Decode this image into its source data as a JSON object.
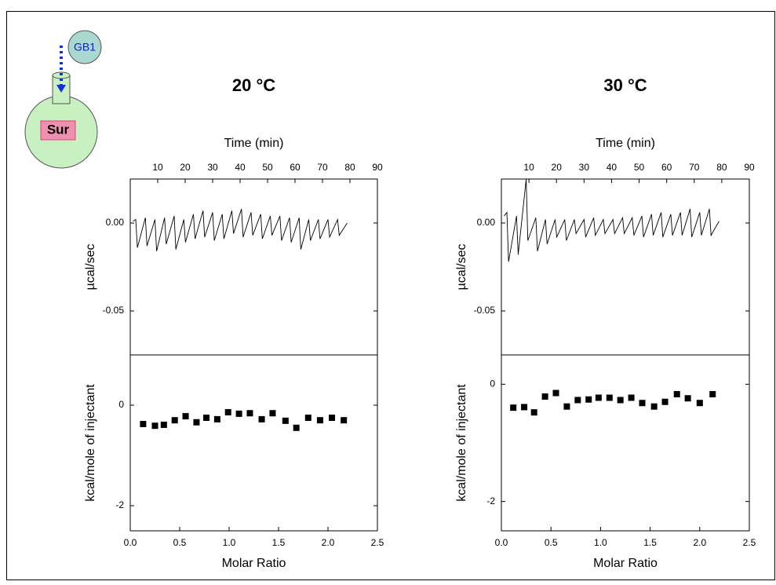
{
  "inset": {
    "titrant": "GB1",
    "cell": "Sur"
  },
  "chart_data": [
    {
      "type": "line",
      "title": "20 °C",
      "x_label": "Time (min)",
      "y_label": "µcal/sec",
      "color": "#000000",
      "xlim": [
        0,
        90
      ],
      "xticks": [
        10,
        20,
        30,
        40,
        50,
        60,
        70,
        80,
        90
      ],
      "ylim": [
        -0.075,
        0.025
      ],
      "yticks": [
        {
          "value": 0,
          "label": "0.00"
        },
        {
          "value": -0.05,
          "label": "-0.05"
        }
      ],
      "x": [
        1,
        2,
        2.6,
        5.5,
        6.1,
        9,
        9.6,
        12.5,
        13.1,
        16,
        16.6,
        19.5,
        20.1,
        23,
        23.6,
        26.5,
        27.1,
        30,
        30.6,
        33.5,
        34.1,
        37,
        37.6,
        40.5,
        41.1,
        44,
        44.6,
        47.5,
        48.1,
        51,
        51.6,
        54.5,
        55.1,
        58,
        58.6,
        61.5,
        62.1,
        65,
        65.6,
        68.5,
        69.1,
        72,
        72.6,
        75.5,
        76.1,
        79
      ],
      "values": [
        0.001,
        0.002,
        -0.014,
        0.003,
        -0.013,
        0.002,
        -0.016,
        0.003,
        -0.012,
        0.004,
        -0.015,
        0.002,
        -0.011,
        0.005,
        -0.009,
        0.007,
        -0.008,
        0.006,
        -0.01,
        0.005,
        -0.009,
        0.007,
        -0.006,
        0.008,
        -0.008,
        0.006,
        -0.007,
        0.005,
        -0.009,
        0.004,
        -0.007,
        0.004,
        -0.01,
        0.003,
        -0.011,
        0.003,
        -0.015,
        0.002,
        -0.01,
        0.002,
        -0.009,
        0.002,
        -0.008,
        0.002,
        -0.007,
        0.0
      ]
    },
    {
      "type": "scatter",
      "x_label": "Molar Ratio",
      "y_label": "kcal/mole of injectant",
      "color": "#000000",
      "xlim": [
        0,
        2.5
      ],
      "xticks": [
        {
          "value": 0,
          "label": "0.0"
        },
        {
          "value": 0.5,
          "label": "0.5"
        },
        {
          "value": 1,
          "label": "1.0"
        },
        {
          "value": 1.5,
          "label": "1.5"
        },
        {
          "value": 2,
          "label": "2.0"
        },
        {
          "value": 2.5,
          "label": "2.5"
        }
      ],
      "ylim": [
        -2.5,
        1
      ],
      "yticks": [
        -2,
        0
      ],
      "x": [
        0.13,
        0.25,
        0.34,
        0.45,
        0.56,
        0.67,
        0.77,
        0.88,
        0.99,
        1.1,
        1.21,
        1.33,
        1.44,
        1.57,
        1.68,
        1.8,
        1.92,
        2.04,
        2.16
      ],
      "values": [
        -0.375,
        -0.41,
        -0.39,
        -0.3,
        -0.22,
        -0.34,
        -0.25,
        -0.28,
        -0.14,
        -0.17,
        -0.16,
        -0.28,
        -0.16,
        -0.31,
        -0.45,
        -0.25,
        -0.3,
        -0.25,
        -0.3
      ]
    },
    {
      "type": "line",
      "title": "30 °C",
      "x_label": "Time (min)",
      "y_label": "µcal/sec",
      "color": "#000000",
      "xlim": [
        0,
        90
      ],
      "xticks": [
        10,
        20,
        30,
        40,
        50,
        60,
        70,
        80,
        90
      ],
      "ylim": [
        -0.075,
        0.025
      ],
      "yticks": [
        {
          "value": 0,
          "label": "0.00"
        },
        {
          "value": -0.05,
          "label": "-0.05"
        }
      ],
      "x": [
        1,
        2,
        2.6,
        5.5,
        6.1,
        9,
        9.6,
        12.5,
        13.1,
        16,
        16.6,
        19.5,
        20.1,
        23,
        23.6,
        26.5,
        27.1,
        30,
        30.6,
        33.5,
        34.1,
        37,
        37.6,
        40.5,
        41.1,
        44,
        44.6,
        47.5,
        48.1,
        51,
        51.6,
        54.5,
        55.1,
        58,
        58.6,
        61.5,
        62.1,
        65,
        65.6,
        68.5,
        69.1,
        72,
        72.6,
        75.5,
        76.1,
        79
      ],
      "values": [
        0.004,
        0.006,
        -0.022,
        0.004,
        -0.018,
        0.025,
        -0.01,
        0.003,
        -0.016,
        0.002,
        -0.012,
        0.002,
        -0.008,
        0.002,
        -0.01,
        0.002,
        -0.006,
        0.002,
        -0.008,
        0.003,
        -0.007,
        0.002,
        -0.006,
        0.002,
        -0.006,
        0.003,
        -0.006,
        0.003,
        -0.007,
        0.004,
        -0.008,
        0.005,
        -0.007,
        0.006,
        -0.008,
        0.005,
        -0.007,
        0.006,
        -0.007,
        0.008,
        -0.008,
        0.006,
        -0.007,
        0.008,
        -0.007,
        0.001
      ]
    },
    {
      "type": "scatter",
      "x_label": "Molar Ratio",
      "y_label": "kcal/mole of injectant",
      "color": "#000000",
      "xlim": [
        0,
        2.5
      ],
      "xticks": [
        {
          "value": 0,
          "label": "0.0"
        },
        {
          "value": 0.5,
          "label": "0.5"
        },
        {
          "value": 1,
          "label": "1.0"
        },
        {
          "value": 1.5,
          "label": "1.5"
        },
        {
          "value": 2,
          "label": "2.0"
        },
        {
          "value": 2.5,
          "label": "2.5"
        }
      ],
      "ylim": [
        -2.5,
        0.5
      ],
      "yticks": [
        -2,
        0
      ],
      "x": [
        0.12,
        0.23,
        0.33,
        0.44,
        0.55,
        0.66,
        0.77,
        0.88,
        0.98,
        1.09,
        1.2,
        1.31,
        1.42,
        1.54,
        1.65,
        1.77,
        1.88,
        2.0,
        2.13
      ],
      "values": [
        -0.4,
        -0.39,
        -0.48,
        -0.21,
        -0.15,
        -0.38,
        -0.27,
        -0.26,
        -0.23,
        -0.23,
        -0.27,
        -0.23,
        -0.32,
        -0.38,
        -0.3,
        -0.17,
        -0.24,
        -0.32,
        -0.17
      ]
    }
  ]
}
